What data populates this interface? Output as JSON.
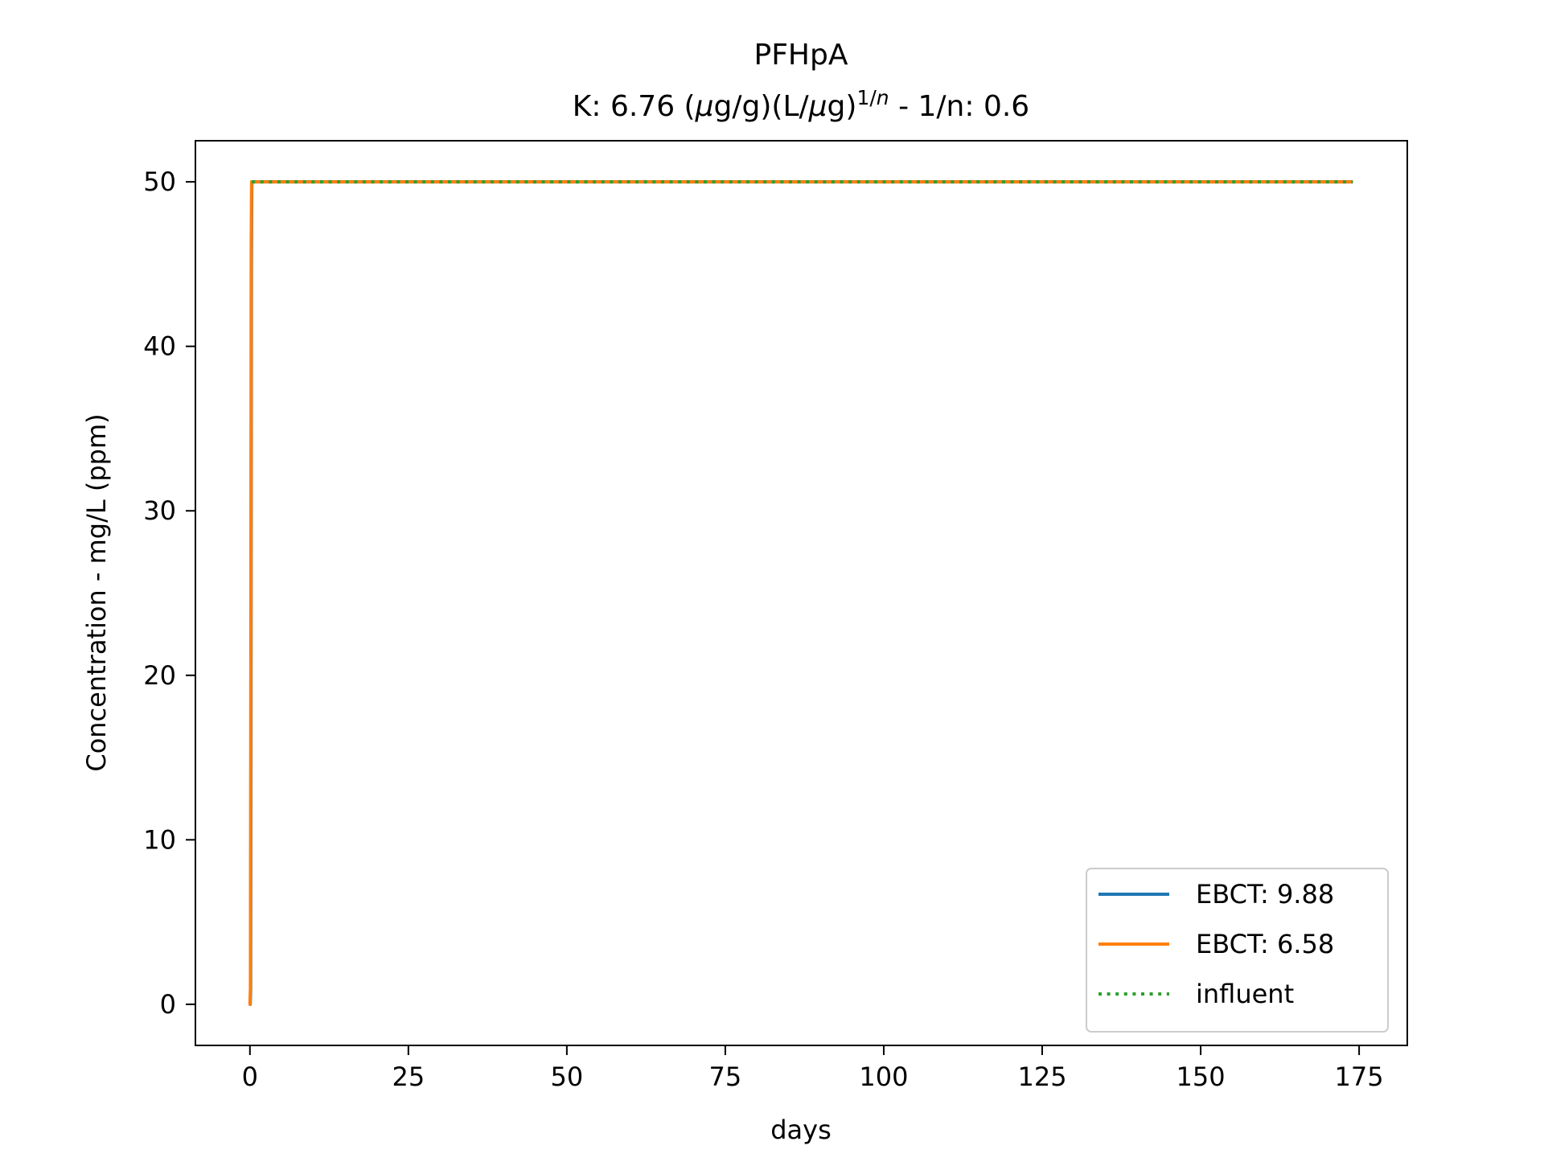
{
  "chart_data": {
    "type": "line",
    "title": "PFHpA",
    "subtitle": {
      "prefix": "K: 6.76 (",
      "mu1": "μ",
      "mid": "g/g)(L/",
      "mu2": "μ",
      "after": "g)",
      "sup_main": "1/",
      "sup_var": "n",
      "suffix": " - 1/n: 0.6"
    },
    "xlabel": "days",
    "ylabel": "Concentration - mg/L (ppm)",
    "xlim": [
      -8.6,
      182.6
    ],
    "ylim": [
      -2.5,
      52.5
    ],
    "xticks": [
      0,
      25,
      50,
      75,
      100,
      125,
      150,
      175
    ],
    "yticks": [
      0,
      10,
      20,
      30,
      40,
      50
    ],
    "grid": false,
    "legend_position": "lower right",
    "series": [
      {
        "name": "EBCT: 9.88",
        "color": "#1f77b4",
        "style": "solid",
        "points": [
          [
            -0.1,
            0
          ],
          [
            0.05,
            0
          ],
          [
            0.12,
            1
          ],
          [
            0.18,
            20
          ],
          [
            0.24,
            45
          ],
          [
            0.3,
            50
          ],
          [
            174,
            50
          ]
        ]
      },
      {
        "name": "EBCT: 6.58",
        "color": "#ff7f0e",
        "style": "solid",
        "points": [
          [
            -0.2,
            0
          ],
          [
            0.0,
            0
          ],
          [
            0.08,
            1
          ],
          [
            0.14,
            22
          ],
          [
            0.2,
            46
          ],
          [
            0.26,
            50
          ],
          [
            174,
            50
          ]
        ]
      },
      {
        "name": "influent",
        "color": "#2ca02c",
        "style": "dotted",
        "points": [
          [
            0.3,
            50
          ],
          [
            174,
            50
          ]
        ]
      }
    ]
  }
}
